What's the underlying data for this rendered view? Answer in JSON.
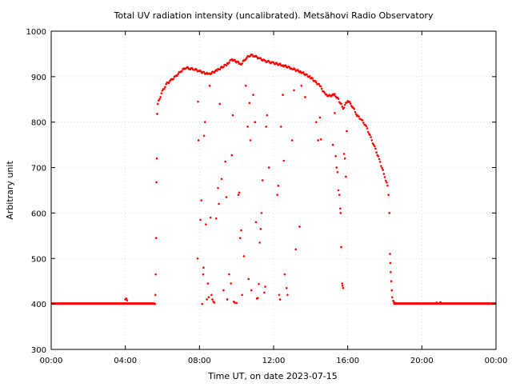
{
  "chart_data": {
    "type": "scatter",
    "title": "Total UV radiation intensity (uncalibrated). Metsähovi Radio Observatory",
    "xlabel": "Time UT, on date 2023-07-15",
    "ylabel": "Arbitrary unit",
    "xlim": [
      0,
      24
    ],
    "ylim": [
      300,
      1000
    ],
    "x_ticks": [
      0,
      4,
      8,
      12,
      16,
      20,
      24
    ],
    "x_tick_labels": [
      "00:00",
      "04:00",
      "08:00",
      "12:00",
      "16:00",
      "20:00",
      "00:00"
    ],
    "y_ticks": [
      300,
      400,
      500,
      600,
      700,
      800,
      900,
      1000
    ],
    "y_tick_labels": [
      "300",
      "400",
      "500",
      "600",
      "700",
      "800",
      "900",
      "1000"
    ],
    "grid": true,
    "legend": false,
    "color": "#ff0000",
    "baseline_value": 401,
    "series": [
      {
        "envelope": [
          [
            5.75,
            840
          ],
          [
            6.0,
            868
          ],
          [
            6.25,
            885
          ],
          [
            6.5,
            893
          ],
          [
            6.75,
            902
          ],
          [
            7.0,
            912
          ],
          [
            7.25,
            920
          ],
          [
            7.5,
            918
          ],
          [
            7.75,
            916
          ],
          [
            8.0,
            912
          ],
          [
            8.5,
            905
          ],
          [
            9.0,
            915
          ],
          [
            9.5,
            928
          ],
          [
            9.75,
            938
          ],
          [
            10.25,
            928
          ],
          [
            10.5,
            940
          ],
          [
            10.75,
            948
          ],
          [
            11.0,
            945
          ],
          [
            11.25,
            940
          ],
          [
            11.5,
            935
          ],
          [
            11.75,
            932
          ],
          [
            12.0,
            930
          ],
          [
            12.5,
            925
          ],
          [
            13.0,
            918
          ],
          [
            13.5,
            910
          ],
          [
            14.0,
            898
          ],
          [
            14.5,
            880
          ],
          [
            14.8,
            860
          ],
          [
            15.0,
            858
          ],
          [
            15.3,
            860
          ],
          [
            15.5,
            850
          ],
          [
            15.75,
            830
          ],
          [
            16.0,
            848
          ],
          [
            16.25,
            835
          ],
          [
            16.5,
            815
          ],
          [
            16.75,
            805
          ],
          [
            17.0,
            790
          ],
          [
            17.25,
            765
          ],
          [
            17.5,
            740
          ],
          [
            17.75,
            712
          ],
          [
            18.0,
            680
          ],
          [
            18.2,
            652
          ]
        ],
        "scatter_points": [
          [
            5.6,
            400
          ],
          [
            5.62,
            420
          ],
          [
            5.64,
            465
          ],
          [
            5.66,
            545
          ],
          [
            5.68,
            668
          ],
          [
            5.7,
            720
          ],
          [
            5.72,
            818
          ],
          [
            7.9,
            500
          ],
          [
            7.92,
            845
          ],
          [
            7.95,
            760
          ],
          [
            8.05,
            585
          ],
          [
            8.1,
            628
          ],
          [
            8.15,
            400
          ],
          [
            8.2,
            465
          ],
          [
            8.22,
            480
          ],
          [
            8.25,
            770
          ],
          [
            8.3,
            800
          ],
          [
            8.35,
            575
          ],
          [
            8.4,
            410
          ],
          [
            8.45,
            445
          ],
          [
            8.5,
            415
          ],
          [
            8.55,
            880
          ],
          [
            8.6,
            590
          ],
          [
            8.65,
            420
          ],
          [
            8.7,
            410
          ],
          [
            8.75,
            405
          ],
          [
            8.8,
            403
          ],
          [
            8.9,
            588
          ],
          [
            9.0,
            655
          ],
          [
            9.05,
            620
          ],
          [
            9.1,
            840
          ],
          [
            9.2,
            675
          ],
          [
            9.3,
            430
          ],
          [
            9.4,
            713
          ],
          [
            9.45,
            635
          ],
          [
            9.5,
            410
          ],
          [
            9.6,
            465
          ],
          [
            9.7,
            445
          ],
          [
            9.75,
            727
          ],
          [
            9.8,
            815
          ],
          [
            9.85,
            405
          ],
          [
            9.9,
            403
          ],
          [
            10.0,
            402
          ],
          [
            10.1,
            640
          ],
          [
            10.15,
            645
          ],
          [
            10.2,
            545
          ],
          [
            10.25,
            562
          ],
          [
            10.3,
            420
          ],
          [
            10.4,
            505
          ],
          [
            10.5,
            880
          ],
          [
            10.6,
            790
          ],
          [
            10.65,
            455
          ],
          [
            10.7,
            842
          ],
          [
            10.75,
            760
          ],
          [
            10.8,
            430
          ],
          [
            10.9,
            860
          ],
          [
            11.0,
            800
          ],
          [
            11.05,
            580
          ],
          [
            11.1,
            412
          ],
          [
            11.15,
            413
          ],
          [
            11.2,
            444
          ],
          [
            11.25,
            535
          ],
          [
            11.3,
            565
          ],
          [
            11.35,
            600
          ],
          [
            11.4,
            672
          ],
          [
            11.5,
            425
          ],
          [
            11.55,
            438
          ],
          [
            11.6,
            790
          ],
          [
            11.65,
            815
          ],
          [
            11.75,
            700
          ],
          [
            12.2,
            640
          ],
          [
            12.25,
            660
          ],
          [
            12.3,
            420
          ],
          [
            12.35,
            410
          ],
          [
            12.4,
            790
          ],
          [
            12.5,
            860
          ],
          [
            12.55,
            715
          ],
          [
            12.6,
            465
          ],
          [
            12.7,
            435
          ],
          [
            12.75,
            420
          ],
          [
            13.0,
            760
          ],
          [
            13.1,
            870
          ],
          [
            13.2,
            520
          ],
          [
            13.4,
            570
          ],
          [
            13.5,
            880
          ],
          [
            13.7,
            855
          ],
          [
            14.3,
            800
          ],
          [
            14.4,
            760
          ],
          [
            14.5,
            810
          ],
          [
            14.55,
            762
          ],
          [
            15.2,
            750
          ],
          [
            15.3,
            820
          ],
          [
            15.35,
            725
          ],
          [
            15.4,
            700
          ],
          [
            15.45,
            690
          ],
          [
            15.5,
            650
          ],
          [
            15.55,
            640
          ],
          [
            15.6,
            610
          ],
          [
            15.62,
            600
          ],
          [
            15.65,
            525
          ],
          [
            15.7,
            445
          ],
          [
            15.72,
            440
          ],
          [
            15.75,
            435
          ],
          [
            15.8,
            730
          ],
          [
            15.85,
            720
          ],
          [
            15.9,
            680
          ],
          [
            15.95,
            780
          ],
          [
            18.2,
            640
          ],
          [
            18.25,
            600
          ],
          [
            18.28,
            510
          ],
          [
            18.3,
            490
          ],
          [
            18.32,
            470
          ],
          [
            18.35,
            450
          ],
          [
            18.38,
            430
          ],
          [
            18.4,
            415
          ],
          [
            18.45,
            407
          ],
          [
            18.5,
            404
          ],
          [
            18.55,
            402
          ],
          [
            4.0,
            410
          ],
          [
            4.05,
            412
          ],
          [
            4.1,
            408
          ],
          [
            20.8,
            403
          ],
          [
            21.0,
            404
          ]
        ]
      }
    ]
  }
}
